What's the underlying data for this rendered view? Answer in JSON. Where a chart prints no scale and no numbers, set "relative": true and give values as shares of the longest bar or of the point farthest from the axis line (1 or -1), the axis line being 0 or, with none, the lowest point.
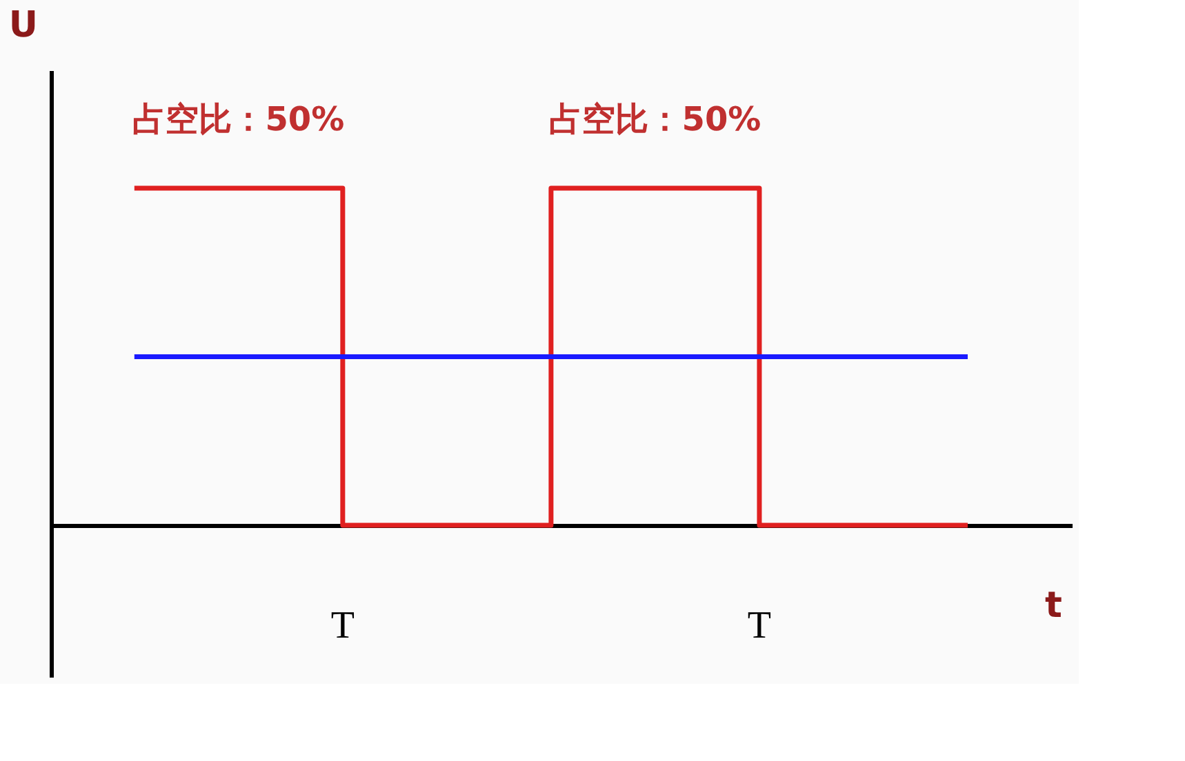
{
  "chart_data": {
    "type": "step",
    "relative": true,
    "xlabel": "t",
    "ylabel": "U",
    "categories": [
      null,
      null,
      null,
      null,
      null
    ],
    "series": [
      {
        "color": "#e02020",
        "values": [
          1,
          0,
          1,
          0,
          0
        ]
      },
      {
        "color": "#1a1aff",
        "values": [
          0.5,
          0.5,
          0.5,
          0.5,
          0.5
        ]
      }
    ],
    "annotations": [
      "占空比：50%",
      "占空比：50%",
      "T",
      "T"
    ],
    "grid": false,
    "marker": "none",
    "line_style": "solid"
  }
}
